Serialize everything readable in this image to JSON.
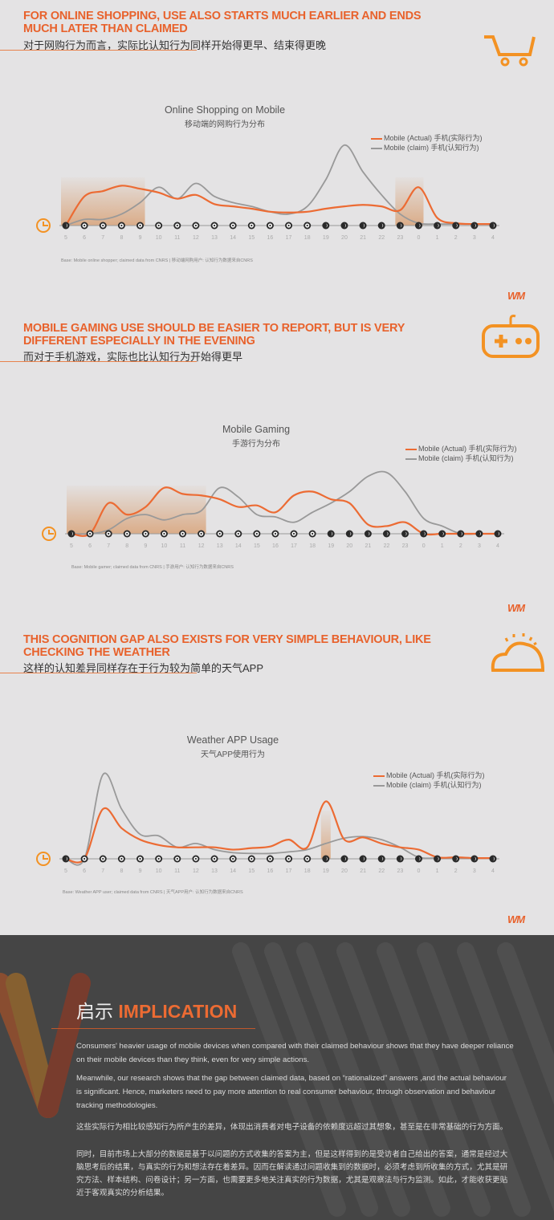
{
  "colors": {
    "accent": "#e8622c",
    "actual": "#ec6b33",
    "claim": "#999999",
    "highlight": "#d9a67e"
  },
  "sections": [
    {
      "title": "FOR ONLINE SHOPPING, USE ALSO STARTS MUCH EARLIER AND ENDS MUCH LATER THAN CLAIMED",
      "subtitle": "对于网购行为而言，实际比认知行为同样开始得更早、结束得更晚",
      "icon": "shopping-cart-icon"
    },
    {
      "title": "MOBILE GAMING USE SHOULD BE EASIER TO REPORT, BUT IS VERY DIFFERENT ESPECIALLY IN THE EVENING",
      "subtitle": "而对于手机游戏，实际也比认知行为开始得更早",
      "icon": "gamepad-icon"
    },
    {
      "title": "THIS COGNITION GAP ALSO EXISTS FOR VERY SIMPLE BEHAVIOUR, LIKE CHECKING THE WEATHER",
      "subtitle": "这样的认知差异同样存在于行为较为简单的天气APP",
      "icon": "sun-cloud-icon"
    }
  ],
  "logo": "WM",
  "chart_data": [
    {
      "type": "line",
      "title": "Online Shopping on Mobile",
      "subtitle": "移动端的网购行为分布",
      "source": "Base: Mobile online shopper; claimed data from CNRS | 移动端网购用户: 认知行为数据来自CNRS",
      "categories": [
        "5",
        "6",
        "7",
        "8",
        "9",
        "10",
        "11",
        "12",
        "13",
        "14",
        "15",
        "16",
        "17",
        "18",
        "19",
        "20",
        "21",
        "22",
        "23",
        "0",
        "1",
        "2",
        "3",
        "4"
      ],
      "highlight_hours": [
        [
          "5",
          "9"
        ],
        [
          "23",
          "0"
        ]
      ],
      "legend_placement": "top-right",
      "grid": false,
      "series": [
        {
          "name": "Mobile (Actual) 手机(实际行为)",
          "values": [
            0,
            38,
            45,
            52,
            48,
            43,
            35,
            40,
            28,
            25,
            22,
            18,
            17,
            18,
            22,
            25,
            27,
            25,
            20,
            50,
            10,
            3,
            2,
            2
          ]
        },
        {
          "name": "Mobile (claim) 手机(认知行为)",
          "values": [
            0,
            8,
            8,
            15,
            30,
            50,
            35,
            55,
            38,
            30,
            25,
            18,
            15,
            25,
            60,
            105,
            70,
            40,
            15,
            3,
            2,
            2,
            2,
            2
          ]
        }
      ]
    },
    {
      "type": "line",
      "title": "Mobile Gaming",
      "subtitle": "手游行为分布",
      "source": "Base: Mobile gamer; claimed data from CNRS | 手游用户: 认知行为数据来自CNRS",
      "categories": [
        "5",
        "6",
        "7",
        "8",
        "9",
        "10",
        "11",
        "12",
        "13",
        "14",
        "15",
        "16",
        "17",
        "18",
        "19",
        "20",
        "21",
        "22",
        "23",
        "0",
        "1",
        "2",
        "3",
        "4"
      ],
      "highlight_hours": [
        [
          "5",
          "12"
        ]
      ],
      "legend_placement": "top-right",
      "grid": false,
      "series": [
        {
          "name": "Mobile (Actual) 手机(实际行为)",
          "values": [
            0,
            0,
            40,
            25,
            35,
            60,
            52,
            50,
            45,
            35,
            37,
            28,
            50,
            55,
            45,
            40,
            12,
            10,
            15,
            0,
            0,
            0,
            0,
            0
          ]
        },
        {
          "name": "Mobile (claim) 手机(认知行为)",
          "values": [
            0,
            0,
            5,
            20,
            25,
            18,
            25,
            30,
            60,
            48,
            25,
            22,
            15,
            28,
            40,
            55,
            75,
            80,
            55,
            20,
            10,
            0,
            0,
            0
          ]
        }
      ]
    },
    {
      "type": "line",
      "title": "Weather APP Usage",
      "subtitle": "天气APP使用行为",
      "source": "Base: Weather APP user; claimed data from CNRS | 天气APP用户: 认知行为数据来自CNRS",
      "categories": [
        "5",
        "6",
        "7",
        "8",
        "9",
        "10",
        "11",
        "12",
        "13",
        "14",
        "15",
        "16",
        "17",
        "18",
        "19",
        "20",
        "21",
        "22",
        "23",
        "0",
        "1",
        "2",
        "3",
        "4"
      ],
      "highlight_hours": [
        [
          "19",
          "19"
        ]
      ],
      "legend_placement": "top-right",
      "grid": false,
      "series": [
        {
          "name": "Mobile (Actual) 手机(实际行为)",
          "values": [
            0,
            0,
            65,
            40,
            25,
            18,
            15,
            15,
            15,
            12,
            14,
            16,
            25,
            15,
            75,
            25,
            28,
            20,
            15,
            12,
            2,
            2,
            1,
            1
          ]
        },
        {
          "name": "Mobile (claim) 手机(认知行为)",
          "values": [
            0,
            0,
            110,
            65,
            32,
            30,
            15,
            20,
            12,
            8,
            7,
            7,
            9,
            12,
            20,
            27,
            29,
            25,
            15,
            2,
            1,
            1,
            1,
            1
          ]
        }
      ]
    }
  ],
  "implication": {
    "heading_cn": "启示",
    "heading_en": "IMPLICATION",
    "paragraphs": [
      "Consumers' heavier usage of mobile devices when compared with their claimed behaviour shows that they have deeper reliance on their mobile devices than they think, even for very simple actions.",
      "Meanwhile, our research shows that the gap between claimed data, based on “rationalized” answers ,and the actual behaviour is significant. Hence, marketers need to pay more attention to real consumer behaviour, through observation and behaviour tracking methodologies.",
      "这些实际行为相比较感知行为所产生的差异，体现出消费者对电子设备的依赖度远超过其想象，甚至是在非常基础的行为方面。",
      "同时，目前市场上大部分的数据是基于以问题的方式收集的答案为主，但是这样得到的是受访者自己给出的答案，通常是经过大脑思考后的结果，与真实的行为和想法存在着差异。因而在解读通过问题收集到的数据时，必须考虑到所收集的方式，尤其是研究方法、样本结构、问卷设计；另一方面，也需要更多地关注真实的行为数据，尤其是观察法与行为监测。如此，才能收获更贴近于客观真实的分析结果。"
    ]
  }
}
